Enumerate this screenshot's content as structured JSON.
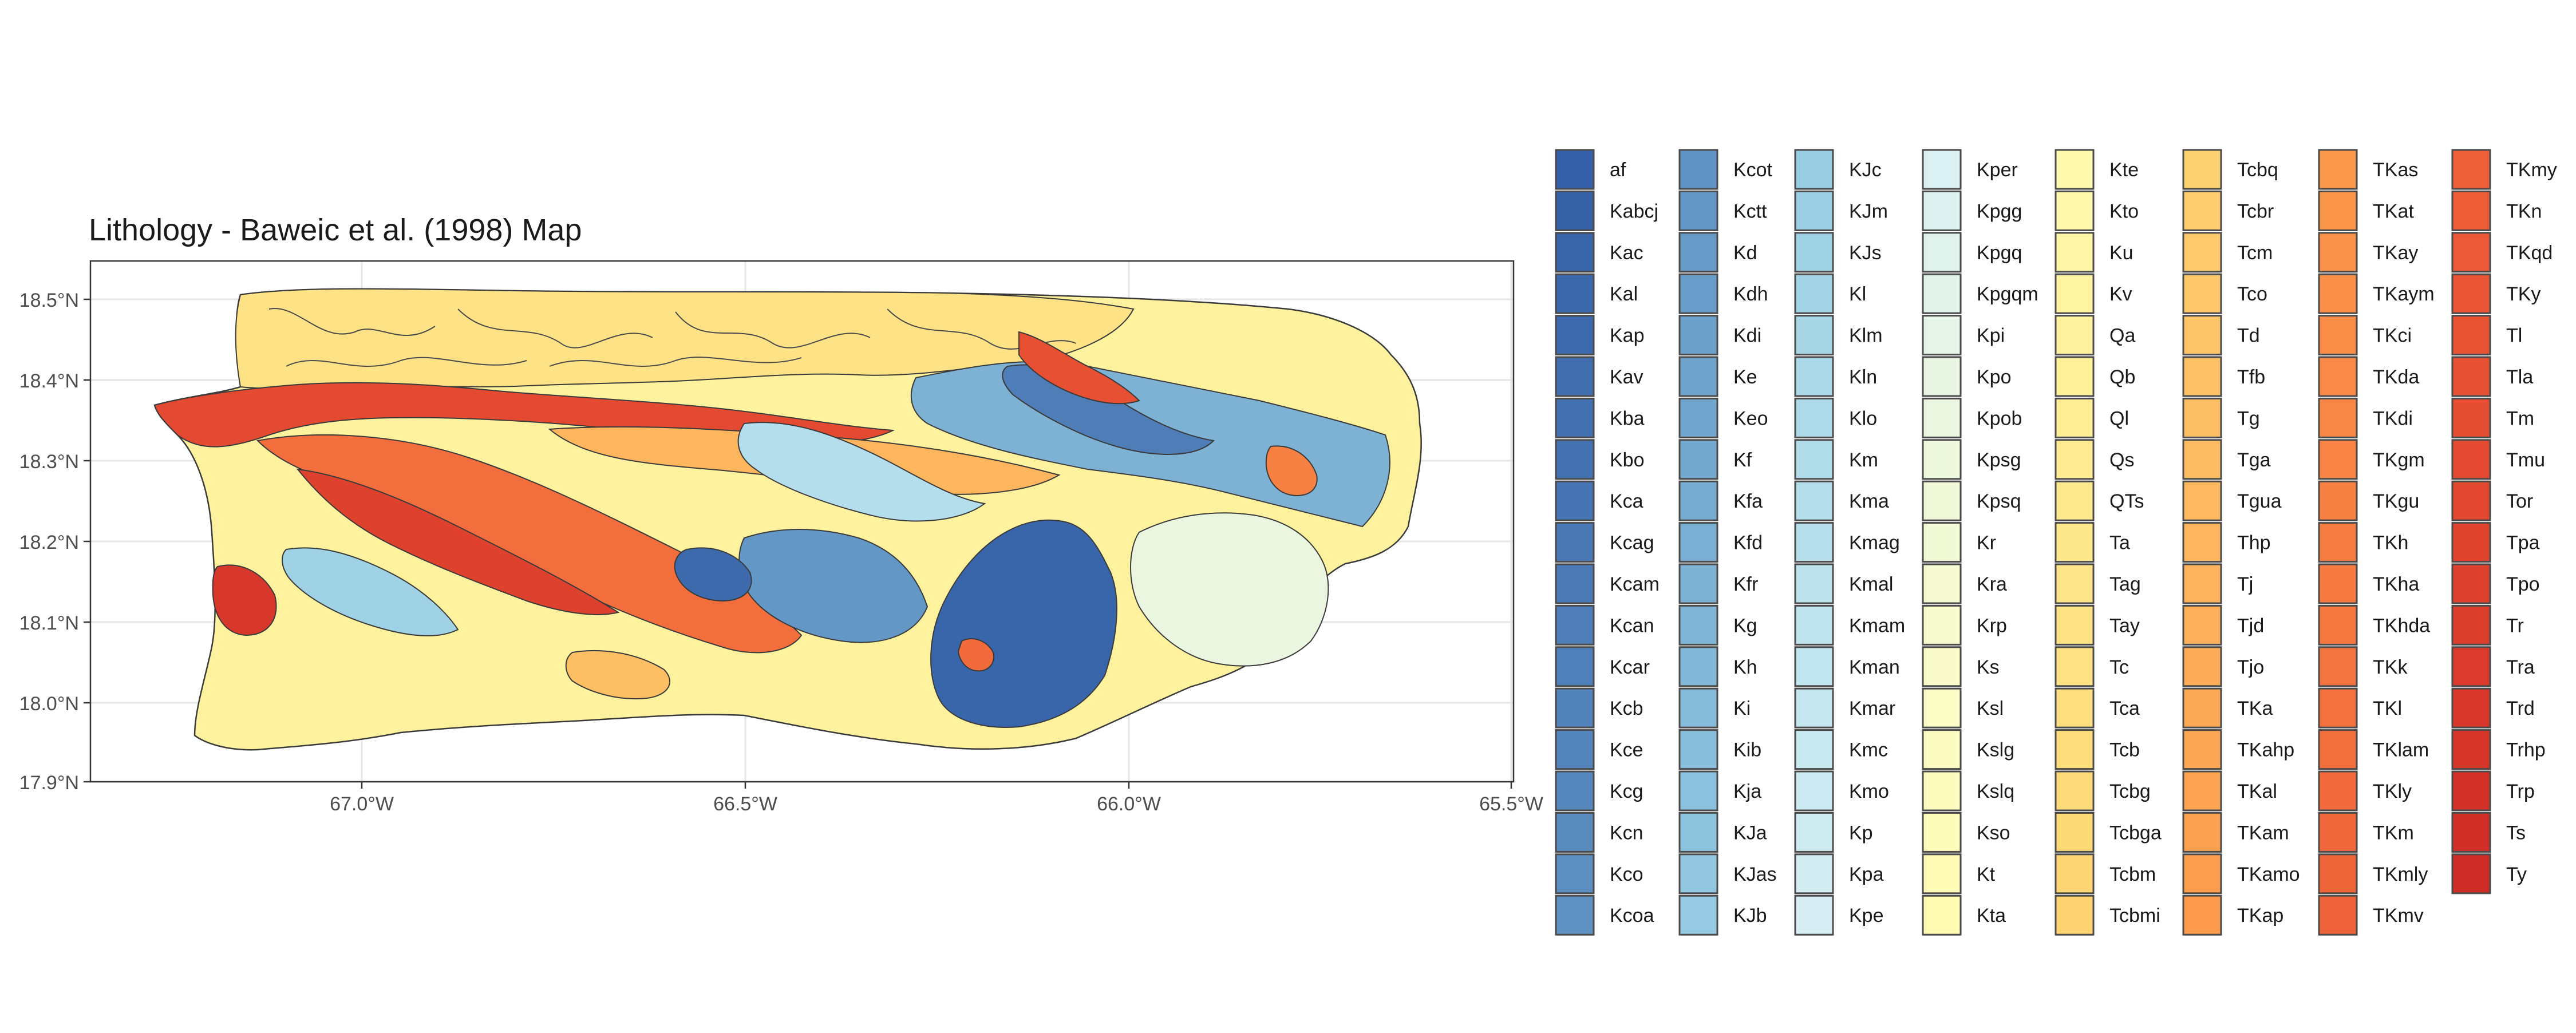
{
  "title": "Lithology - Baweic et al. (1998) Map",
  "axes": {
    "y_ticks": [
      "18.5°N",
      "18.4°N",
      "18.3°N",
      "18.2°N",
      "18.1°N",
      "18.0°N",
      "17.9°N"
    ],
    "x_ticks": [
      "67.0°W",
      "66.5°W",
      "66.0°W",
      "65.5°W"
    ],
    "lat_range": [
      17.9,
      18.55
    ],
    "lon_range": [
      -67.35,
      -65.5
    ],
    "grid": true
  },
  "legend": {
    "placement": "right",
    "columns": [
      [
        {
          "label": "af",
          "color": "#3560a7"
        },
        {
          "label": "Kabcj",
          "color": "#3762a8"
        },
        {
          "label": "Kac",
          "color": "#3965aa"
        },
        {
          "label": "Kal",
          "color": "#3b67ab"
        },
        {
          "label": "Kap",
          "color": "#3d6aad"
        },
        {
          "label": "Kav",
          "color": "#406dae"
        },
        {
          "label": "Kba",
          "color": "#4270b0"
        },
        {
          "label": "Kbo",
          "color": "#4472b1"
        },
        {
          "label": "Kca",
          "color": "#4775b3"
        },
        {
          "label": "Kcag",
          "color": "#4978b4"
        },
        {
          "label": "Kcam",
          "color": "#4b7ab6"
        },
        {
          "label": "Kcan",
          "color": "#4e7db7"
        },
        {
          "label": "Kcar",
          "color": "#5080b9"
        },
        {
          "label": "Kcb",
          "color": "#5283ba"
        },
        {
          "label": "Kce",
          "color": "#5485bc"
        },
        {
          "label": "Kcg",
          "color": "#5788bd"
        },
        {
          "label": "Kcn",
          "color": "#598bbf"
        },
        {
          "label": "Kco",
          "color": "#5c8ec0"
        },
        {
          "label": "Kcoa",
          "color": "#5e91c2"
        }
      ],
      [
        {
          "label": "Kcot",
          "color": "#6094c4"
        },
        {
          "label": "Kctt",
          "color": "#6397c5"
        },
        {
          "label": "Kd",
          "color": "#669ac7"
        },
        {
          "label": "Kdh",
          "color": "#689dc9"
        },
        {
          "label": "Kdi",
          "color": "#6ba0ca"
        },
        {
          "label": "Ke",
          "color": "#6ea3cc"
        },
        {
          "label": "Keo",
          "color": "#71a6ce"
        },
        {
          "label": "Kf",
          "color": "#74a9cf"
        },
        {
          "label": "Kfa",
          "color": "#77acd1"
        },
        {
          "label": "Kfd",
          "color": "#7aafd3"
        },
        {
          "label": "Kfr",
          "color": "#7db2d5"
        },
        {
          "label": "Kg",
          "color": "#80b5d6"
        },
        {
          "label": "Kh",
          "color": "#83b8d8"
        },
        {
          "label": "Ki",
          "color": "#86bbda"
        },
        {
          "label": "Kib",
          "color": "#89bedb"
        },
        {
          "label": "Kja",
          "color": "#8cc1dd"
        },
        {
          "label": "KJa",
          "color": "#8fc4df"
        },
        {
          "label": "KJas",
          "color": "#93c7e0"
        },
        {
          "label": "KJb",
          "color": "#96cae2"
        }
      ],
      [
        {
          "label": "KJc",
          "color": "#99cde3"
        },
        {
          "label": "KJm",
          "color": "#9ccfe4"
        },
        {
          "label": "KJs",
          "color": "#a0d2e5"
        },
        {
          "label": "Kl",
          "color": "#a3d4e6"
        },
        {
          "label": "Klm",
          "color": "#a7d6e7"
        },
        {
          "label": "Kln",
          "color": "#aad8e8"
        },
        {
          "label": "Klo",
          "color": "#addae9"
        },
        {
          "label": "Km",
          "color": "#b1dcea"
        },
        {
          "label": "Kma",
          "color": "#b4deeb"
        },
        {
          "label": "Kmag",
          "color": "#b8e0ec"
        },
        {
          "label": "Kmal",
          "color": "#bbe2ed"
        },
        {
          "label": "Kmam",
          "color": "#bfe4ee"
        },
        {
          "label": "Kman",
          "color": "#c2e6ef"
        },
        {
          "label": "Kmar",
          "color": "#c5e7f0"
        },
        {
          "label": "Kmc",
          "color": "#c9e9f1"
        },
        {
          "label": "Kmo",
          "color": "#cceaf2"
        },
        {
          "label": "Kp",
          "color": "#d0ecf3"
        },
        {
          "label": "Kpa",
          "color": "#d3edf3"
        },
        {
          "label": "Kpe",
          "color": "#d7eff4"
        }
      ],
      [
        {
          "label": "Kper",
          "color": "#daf0f3"
        },
        {
          "label": "Kpgg",
          "color": "#ddf1f0"
        },
        {
          "label": "Kpgq",
          "color": "#dff2ec"
        },
        {
          "label": "Kpgqm",
          "color": "#e2f3e9"
        },
        {
          "label": "Kpi",
          "color": "#e5f4e6"
        },
        {
          "label": "Kpo",
          "color": "#e8f5e2"
        },
        {
          "label": "Kpob",
          "color": "#eaf6df"
        },
        {
          "label": "Kpsg",
          "color": "#edf7db"
        },
        {
          "label": "Kpsq",
          "color": "#f0f8d8"
        },
        {
          "label": "Kr",
          "color": "#f2f9d5"
        },
        {
          "label": "Kra",
          "color": "#f5fad1"
        },
        {
          "label": "Krp",
          "color": "#f7fbce"
        },
        {
          "label": "Ks",
          "color": "#f9fbca"
        },
        {
          "label": "Ksl",
          "color": "#fbfcc6"
        },
        {
          "label": "Kslg",
          "color": "#fcfcc2"
        },
        {
          "label": "Kslq",
          "color": "#fdfcbe"
        },
        {
          "label": "Kso",
          "color": "#fefcba"
        },
        {
          "label": "Kt",
          "color": "#fffbb6"
        },
        {
          "label": "Kta",
          "color": "#fffbb2"
        }
      ],
      [
        {
          "label": "Kte",
          "color": "#fffaae"
        },
        {
          "label": "Kto",
          "color": "#fff8aa"
        },
        {
          "label": "Ku",
          "color": "#fff6a6"
        },
        {
          "label": "Kv",
          "color": "#fff4a2"
        },
        {
          "label": "Qa",
          "color": "#fff29e"
        },
        {
          "label": "Qb",
          "color": "#fff09a"
        },
        {
          "label": "Ql",
          "color": "#ffee96"
        },
        {
          "label": "Qs",
          "color": "#ffec92"
        },
        {
          "label": "QTs",
          "color": "#ffea8f"
        },
        {
          "label": "Ta",
          "color": "#fee88c"
        },
        {
          "label": "Tag",
          "color": "#fee589"
        },
        {
          "label": "Tay",
          "color": "#fee386"
        },
        {
          "label": "Tc",
          "color": "#fee183"
        },
        {
          "label": "Tca",
          "color": "#fedf80"
        },
        {
          "label": "Tcb",
          "color": "#fedd7d"
        },
        {
          "label": "Tcbg",
          "color": "#fedb7a"
        },
        {
          "label": "Tcbga",
          "color": "#fed977"
        },
        {
          "label": "Tcbm",
          "color": "#fed675"
        },
        {
          "label": "Tcbmi",
          "color": "#fed472"
        }
      ],
      [
        {
          "label": "Tcbq",
          "color": "#fed170"
        },
        {
          "label": "Tcbr",
          "color": "#fece6e"
        },
        {
          "label": "Tcm",
          "color": "#fecb6c"
        },
        {
          "label": "Tco",
          "color": "#fec86a"
        },
        {
          "label": "Td",
          "color": "#fdc568"
        },
        {
          "label": "Tfb",
          "color": "#fdc266"
        },
        {
          "label": "Tg",
          "color": "#fdbf64"
        },
        {
          "label": "Tga",
          "color": "#fdbc62"
        },
        {
          "label": "Tgua",
          "color": "#fdb960"
        },
        {
          "label": "Thp",
          "color": "#fdb65e"
        },
        {
          "label": "Tj",
          "color": "#fdb35c"
        },
        {
          "label": "Tjd",
          "color": "#fdb05a"
        },
        {
          "label": "Tjo",
          "color": "#fdad58"
        },
        {
          "label": "TKa",
          "color": "#fdaa56"
        },
        {
          "label": "TKahp",
          "color": "#fca754"
        },
        {
          "label": "TKal",
          "color": "#fca452"
        },
        {
          "label": "TKam",
          "color": "#fca150"
        },
        {
          "label": "TKamo",
          "color": "#fc9e4e"
        },
        {
          "label": "TKap",
          "color": "#fc9b4c"
        }
      ],
      [
        {
          "label": "TKas",
          "color": "#fb984b"
        },
        {
          "label": "TKat",
          "color": "#fb954a"
        },
        {
          "label": "TKay",
          "color": "#fa9249"
        },
        {
          "label": "TKaym",
          "color": "#fa8f48"
        },
        {
          "label": "TKci",
          "color": "#f98c47"
        },
        {
          "label": "TKda",
          "color": "#f98946"
        },
        {
          "label": "TKdi",
          "color": "#f88645"
        },
        {
          "label": "TKgm",
          "color": "#f88344"
        },
        {
          "label": "TKgu",
          "color": "#f78043"
        },
        {
          "label": "TKh",
          "color": "#f67d42"
        },
        {
          "label": "TKha",
          "color": "#f67a41"
        },
        {
          "label": "TKhda",
          "color": "#f57740"
        },
        {
          "label": "TKk",
          "color": "#f4743f"
        },
        {
          "label": "TKl",
          "color": "#f3713e"
        },
        {
          "label": "TKlam",
          "color": "#f26e3d"
        },
        {
          "label": "TKly",
          "color": "#f16b3c"
        },
        {
          "label": "TKm",
          "color": "#f0683b"
        },
        {
          "label": "TKmly",
          "color": "#ef653a"
        },
        {
          "label": "TKmv",
          "color": "#ee6239"
        }
      ],
      [
        {
          "label": "TKmy",
          "color": "#ed5f38"
        },
        {
          "label": "TKn",
          "color": "#ec5c37"
        },
        {
          "label": "TKqd",
          "color": "#eb5936"
        },
        {
          "label": "TKy",
          "color": "#ea5635"
        },
        {
          "label": "Tl",
          "color": "#e85334"
        },
        {
          "label": "Tla",
          "color": "#e75033"
        },
        {
          "label": "Tm",
          "color": "#e54d32"
        },
        {
          "label": "Tmu",
          "color": "#e44a31"
        },
        {
          "label": "Tor",
          "color": "#e24730"
        },
        {
          "label": "Tpa",
          "color": "#e0442f"
        },
        {
          "label": "Tpo",
          "color": "#de412e"
        },
        {
          "label": "Tr",
          "color": "#dc3e2d"
        },
        {
          "label": "Tra",
          "color": "#da3b2c"
        },
        {
          "label": "Trd",
          "color": "#d8382b"
        },
        {
          "label": "Trhp",
          "color": "#d6352a"
        },
        {
          "label": "Trp",
          "color": "#d43229"
        },
        {
          "label": "Ts",
          "color": "#d22f28"
        },
        {
          "label": "Ty",
          "color": "#cf2c27"
        }
      ]
    ]
  }
}
